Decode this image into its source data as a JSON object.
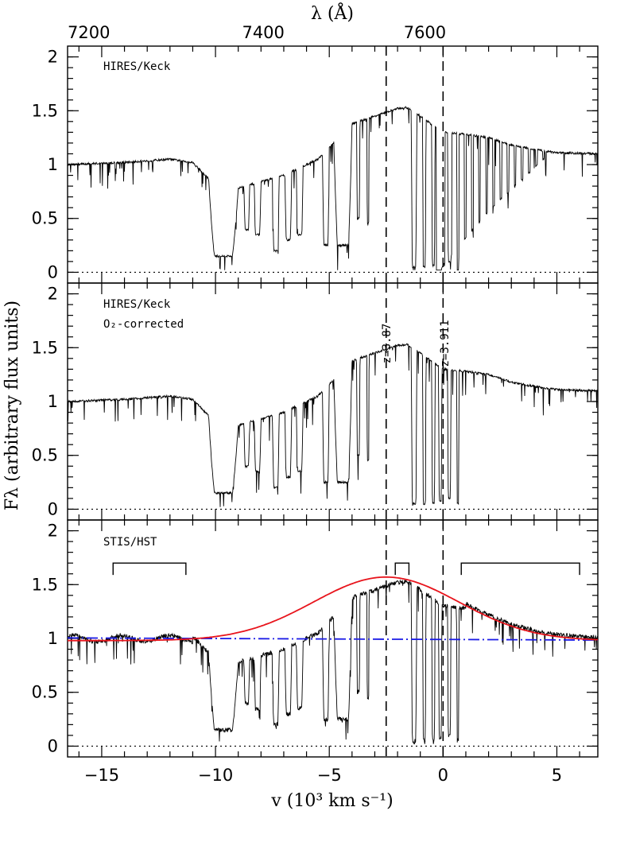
{
  "chart_data": {
    "type": "line",
    "top_axis": {
      "label": "λ (Å)",
      "ticks": [
        7200,
        7400,
        7600
      ]
    },
    "x_axis": {
      "label": "v (10³ km s⁻¹)",
      "range": [
        -16.5,
        6.8
      ],
      "ticks": [
        -15,
        -10,
        -5,
        0,
        5
      ]
    },
    "y_axis": {
      "label": "Fλ (arbitrary flux units)",
      "range": [
        -0.1,
        2.1
      ],
      "ticks": [
        "0",
        "0.5",
        "1",
        "1.5",
        "2"
      ]
    },
    "vlines": [
      {
        "v": -2.5,
        "label": "z=3.87"
      },
      {
        "v": 0,
        "label": "z=3.911"
      }
    ],
    "panels": [
      {
        "label": "HIRES/Keck",
        "sublabel": "",
        "telluric": true
      },
      {
        "label": "HIRES/Keck",
        "sublabel": "O₂-corrected",
        "telluric": false
      },
      {
        "label": "STIS/HST",
        "sublabel": "",
        "telluric": false
      }
    ],
    "continuum_fit_windows": [
      [
        -14.5,
        -11.3
      ],
      [
        -2.1,
        -1.5
      ],
      [
        0.8,
        6.0
      ]
    ],
    "emission_model": {
      "color": "#e8141c",
      "peak_v": -2.5,
      "peak": 1.57,
      "base": 0.98
    },
    "continuum_model": {
      "color": "#1a1ae6",
      "start": 1.005,
      "end": 0.985
    },
    "spectrum_color": "#000000",
    "continuum_anchors": [
      [
        -16.5,
        1.0
      ],
      [
        -14,
        1.02
      ],
      [
        -12,
        1.05
      ],
      [
        -11,
        1.02
      ],
      [
        -10,
        0.8
      ],
      [
        -9,
        0.78
      ],
      [
        -7,
        0.9
      ],
      [
        -5.5,
        1.05
      ],
      [
        -4,
        1.38
      ],
      [
        -3,
        1.45
      ],
      [
        -2,
        1.52
      ],
      [
        -1.6,
        1.53
      ],
      [
        -1,
        1.45
      ],
      [
        0,
        1.3
      ],
      [
        1,
        1.28
      ],
      [
        2,
        1.25
      ],
      [
        3,
        1.18
      ],
      [
        4,
        1.14
      ],
      [
        5,
        1.11
      ],
      [
        6.8,
        1.1
      ]
    ],
    "absorption_troughs": [
      [
        -10.3,
        -9.0,
        0.15
      ],
      [
        -8.75,
        -8.5,
        0.4
      ],
      [
        -8.3,
        -8.0,
        0.35
      ],
      [
        -7.5,
        -7.2,
        0.2
      ],
      [
        -6.95,
        -6.65,
        0.3
      ],
      [
        -6.45,
        -6.15,
        0.35
      ],
      [
        -5.3,
        -5.0,
        0.25
      ],
      [
        -4.8,
        -4.0,
        0.25
      ],
      [
        -3.8,
        -3.65,
        0.5
      ],
      [
        -3.35,
        -3.25,
        0.45
      ],
      [
        -1.4,
        -1.15,
        0.05
      ],
      [
        -0.9,
        -0.75,
        0.05
      ],
      [
        -0.5,
        -0.35,
        0.06
      ],
      [
        -0.2,
        -0.05,
        0.08
      ],
      [
        0.2,
        0.35,
        0.1
      ],
      [
        0.6,
        0.7,
        0.05
      ]
    ]
  }
}
